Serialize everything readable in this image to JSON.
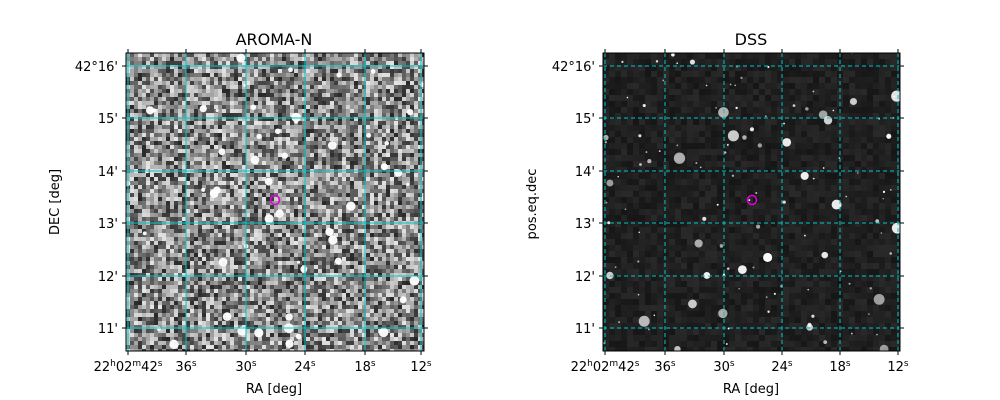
{
  "panels": [
    {
      "title": "AROMA-N",
      "xlabel": "RA [deg]",
      "ylabel": "DEC [deg]",
      "background": "#7a7a7a",
      "style": "noisy"
    },
    {
      "title": "DSS",
      "xlabel": "RA [deg]",
      "ylabel": "pos.eq.dec",
      "background": "#1e1e1e",
      "style": "smooth"
    }
  ],
  "x_ticks": [
    {
      "main": "22",
      "h": "h",
      "mid": "02",
      "m": "m",
      "sec": "42",
      "s": "s"
    },
    {
      "main": "36",
      "s": "s"
    },
    {
      "main": "30",
      "s": "s"
    },
    {
      "main": "24",
      "s": "s"
    },
    {
      "main": "18",
      "s": "s"
    },
    {
      "main": "12",
      "s": "s"
    }
  ],
  "y_ticks": [
    "42°16'",
    "15'",
    "14'",
    "13'",
    "12'",
    "11'"
  ],
  "grid_color": "#00c8c8",
  "marker_color": "#e000e0",
  "marker": "target-circle"
}
